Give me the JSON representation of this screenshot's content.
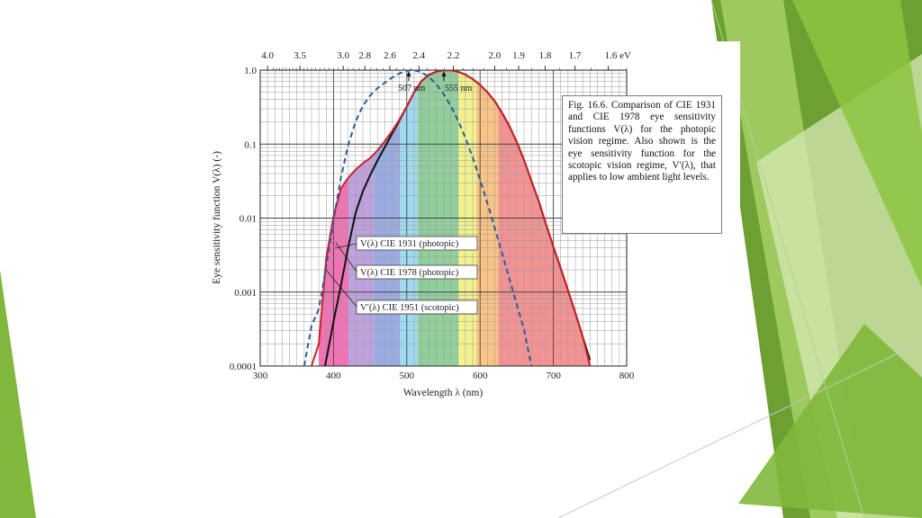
{
  "slide": {
    "colors": {
      "green_dark": "#5f8f2a",
      "green_mid": "#7fb83a",
      "green_light": "#a9d36a",
      "green_pale": "#d5e9b4"
    }
  },
  "caption": {
    "figure_number": "Fig. 16.6.",
    "text": "Comparison of CIE 1931 and CIE 1978 eye sensitivity functions V(λ) for the photopic vision regime. Also shown is the eye sensitivity function for the scotopic vision regime, V′(λ), that applies to low ambient light levels."
  },
  "chart_data": {
    "type": "line",
    "xlabel": "Wavelength λ (nm)",
    "ylabel": "Eye sensitivity function V(λ) (-)",
    "xlim": [
      300,
      800
    ],
    "ylim": [
      0.0001,
      1.0
    ],
    "y_scale": "log",
    "x_ticks": [
      "300",
      "400",
      "500",
      "600",
      "700",
      "800"
    ],
    "y_ticks": [
      "0.0001",
      "0.001",
      "0.01",
      "0.1",
      "1.0"
    ],
    "top_axis": {
      "unit": "eV",
      "ticks": [
        {
          "label": "4.0",
          "value": 4.0
        },
        {
          "label": "3.5",
          "value": 3.5
        },
        {
          "label": "3.0",
          "value": 3.0
        },
        {
          "label": "2.8",
          "value": 2.8
        },
        {
          "label": "2.6",
          "value": 2.6
        },
        {
          "label": "2.4",
          "value": 2.4
        },
        {
          "label": "2.2",
          "value": 2.2
        },
        {
          "label": "2.0",
          "value": 2.0
        },
        {
          "label": "1.9",
          "value": 1.9
        },
        {
          "label": "1.8",
          "value": 1.8
        },
        {
          "label": "1.7",
          "value": 1.7
        },
        {
          "label": "1.6 eV",
          "value": 1.6
        }
      ]
    },
    "peak_annotations": [
      {
        "label": "507 nm",
        "x": 507
      },
      {
        "label": "555 nm",
        "x": 555
      }
    ],
    "color_bands": [
      {
        "from": 380,
        "to": 420,
        "color": "#f05aa8"
      },
      {
        "from": 420,
        "to": 455,
        "color": "#b490d8"
      },
      {
        "from": 455,
        "to": 490,
        "color": "#8a9ee0"
      },
      {
        "from": 490,
        "to": 515,
        "color": "#8ed4ee"
      },
      {
        "from": 515,
        "to": 570,
        "color": "#7ec78c"
      },
      {
        "from": 570,
        "to": 595,
        "color": "#eef07a"
      },
      {
        "from": 595,
        "to": 625,
        "color": "#f8b870"
      },
      {
        "from": 625,
        "to": 760,
        "color": "#f28080"
      }
    ],
    "series": [
      {
        "name": "V(λ) CIE 1931 (photopic)",
        "color": "#111111",
        "style": "solid",
        "x": [
          380,
          390,
          400,
          410,
          420,
          430,
          440,
          450,
          460,
          470,
          480,
          490,
          500,
          510,
          520,
          530,
          540,
          550,
          555,
          560,
          570,
          580,
          590,
          600,
          610,
          620,
          630,
          640,
          650,
          660,
          670,
          680,
          690,
          700,
          710,
          720,
          730,
          740,
          750
        ],
        "y": [
          3.9e-05,
          0.00012,
          0.000396,
          0.00121,
          0.004,
          0.0116,
          0.023,
          0.038,
          0.06,
          0.091,
          0.139,
          0.208,
          0.323,
          0.503,
          0.71,
          0.862,
          0.954,
          0.995,
          1.0,
          0.995,
          0.952,
          0.87,
          0.757,
          0.631,
          0.503,
          0.381,
          0.265,
          0.175,
          0.107,
          0.061,
          0.032,
          0.017,
          0.0082,
          0.0041,
          0.0021,
          0.00105,
          0.00052,
          0.00025,
          0.00012
        ]
      },
      {
        "name": "V(λ) CIE 1978 (photopic)",
        "color": "#cc1f2a",
        "style": "solid",
        "x": [
          370,
          380,
          390,
          400,
          410,
          420,
          430,
          440,
          450,
          460,
          470,
          480,
          490,
          500,
          510,
          520,
          530,
          540,
          550,
          555,
          560,
          570,
          580,
          590,
          600,
          610,
          620,
          630,
          640,
          650,
          660,
          670,
          680,
          690,
          700,
          710,
          720,
          730,
          740,
          750
        ],
        "y": [
          0.0001,
          0.0002,
          0.0028,
          0.0105,
          0.025,
          0.035,
          0.045,
          0.055,
          0.065,
          0.082,
          0.11,
          0.15,
          0.215,
          0.323,
          0.503,
          0.71,
          0.862,
          0.954,
          0.995,
          1.0,
          0.995,
          0.952,
          0.87,
          0.757,
          0.631,
          0.503,
          0.381,
          0.265,
          0.175,
          0.107,
          0.061,
          0.032,
          0.017,
          0.0082,
          0.0041,
          0.0021,
          0.00105,
          0.00052,
          0.00025,
          0.0001
        ]
      },
      {
        "name": "V′(λ) CIE 1951 (scotopic)",
        "color": "#2a5c9e",
        "style": "dashed",
        "x": [
          360,
          370,
          380,
          390,
          400,
          410,
          420,
          430,
          440,
          450,
          460,
          470,
          480,
          490,
          500,
          507,
          510,
          520,
          530,
          540,
          550,
          560,
          570,
          580,
          590,
          600,
          610,
          620,
          630,
          640,
          650,
          660,
          670
        ],
        "y": [
          0.0001,
          0.00035,
          0.00059,
          0.0022,
          0.0093,
          0.0348,
          0.0966,
          0.1998,
          0.3281,
          0.455,
          0.567,
          0.676,
          0.793,
          0.904,
          0.982,
          1.0,
          0.997,
          0.935,
          0.811,
          0.65,
          0.481,
          0.3288,
          0.2076,
          0.1212,
          0.0655,
          0.03315,
          0.01593,
          0.00737,
          0.00334,
          0.0015,
          0.00068,
          0.00031,
          0.0001
        ]
      }
    ]
  }
}
